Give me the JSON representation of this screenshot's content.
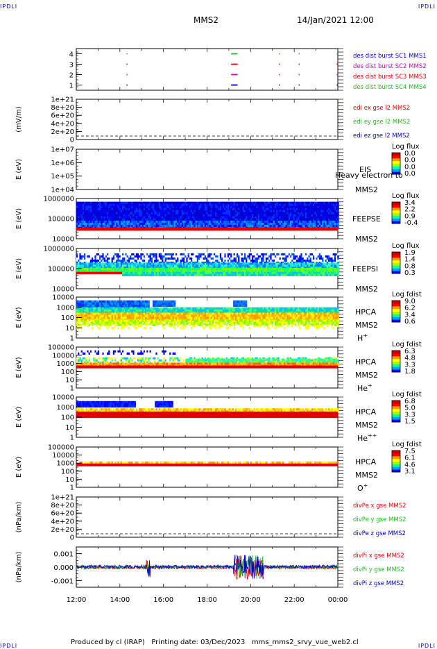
{
  "corner_labels": {
    "tl": "IPDLI",
    "tr": "IPDLI",
    "bl": "IPDLI",
    "br": "IPDLI"
  },
  "header": {
    "spacecraft": "MMS2",
    "datetime": "14/Jan/2021 12:00"
  },
  "footer": {
    "text": "Produced by cl (IRAP)   Printing date: 03/Dec/2023   mms_mms2_srvy_vue_web2.cl"
  },
  "time_axis": {
    "ticks": [
      "12:00",
      "14:00",
      "16:00",
      "18:00",
      "20:00",
      "22:00",
      "00:00"
    ]
  },
  "colors": {
    "red": "#ee0000",
    "green": "#22bb22",
    "blue": "#0000cc",
    "magenta": "#cc00cc",
    "colorbar": [
      "#0000ff",
      "#00a0ff",
      "#00ffb0",
      "#a0ff00",
      "#ffff00",
      "#ff9900",
      "#ff0000",
      "#cc0000"
    ]
  },
  "chart_data": [
    {
      "type": "scatter",
      "panel": "burst",
      "ylim": [
        0.5,
        4.5
      ],
      "yticks": [
        "1",
        "2",
        "3",
        "4"
      ],
      "legend": [
        {
          "text": "des dist burst SC1 MMS1",
          "color": "#0000cc"
        },
        {
          "text": "des dist burst SC2 MMS2",
          "color": "#cc00cc"
        },
        {
          "text": "des dist burst SC3 MMS3",
          "color": "#ee0000"
        },
        {
          "text": "des dist burst SC4 MMS4",
          "color": "#22bb22"
        }
      ],
      "series": [
        {
          "level": 4,
          "color": "#22bb22",
          "times": [
            14.3,
            19.1,
            19.15,
            21.3,
            22.2,
            23.95
          ]
        },
        {
          "level": 3,
          "color": "#ee0000",
          "times": [
            14.3,
            19.1,
            19.15,
            21.3,
            22.2,
            23.95
          ]
        },
        {
          "level": 2,
          "color": "#cc00cc",
          "times": [
            14.3,
            19.1,
            19.15,
            21.3,
            22.2,
            23.95
          ]
        },
        {
          "level": 1,
          "color": "#0000cc",
          "times": [
            14.3,
            19.1,
            19.15,
            21.3,
            22.2,
            23.95
          ]
        }
      ]
    },
    {
      "type": "line",
      "panel": "edi",
      "ylabel": "(mV/m)",
      "yticks": [
        "1e+21",
        "8e+20",
        "6e+20",
        "4e+20",
        "2e+20",
        "0"
      ],
      "legend": [
        {
          "text": "edi ex gse l2 MMS2",
          "color": "#ee0000"
        },
        {
          "text": "edi ey gse l2 MMS2",
          "color": "#22bb22"
        },
        {
          "text": "edi ez gse l2 MMS2",
          "color": "#0000cc"
        }
      ]
    },
    {
      "type": "heatmap",
      "panel": "eis",
      "ylabel": "E (eV)",
      "yticks": [
        "1e+07",
        "1e+06",
        "1e+05",
        "1e+04"
      ],
      "instrument": "EIS",
      "species": "Heavy electron to",
      "sc": "MMS2",
      "cb_title": "Log flux",
      "cb_ticks": [
        "0.0",
        "0.0",
        "0.0",
        "0.0"
      ]
    },
    {
      "type": "heatmap",
      "panel": "feepse",
      "ylabel": "E (eV)",
      "yticks": [
        "1000000",
        "100000",
        "10000"
      ],
      "instrument": "FEEPSE",
      "sc": "MMS2",
      "cb_title": "Log flux",
      "cb_ticks": [
        "3.4",
        "2.2",
        "0.9",
        "-0.4"
      ]
    },
    {
      "type": "heatmap",
      "panel": "feepsi",
      "ylabel": "E (eV)",
      "yticks": [
        "1000000",
        "100000",
        "10000"
      ],
      "instrument": "FEEPSI",
      "sc": "MMS2",
      "cb_title": "Log flux",
      "cb_ticks": [
        "1.9",
        "1.4",
        "0.8",
        "0.3"
      ]
    },
    {
      "type": "heatmap",
      "panel": "hpca_h",
      "ylabel": "E (eV)",
      "yticks": [
        "10000",
        "1000",
        "100",
        "10",
        "1"
      ],
      "instrument": "HPCA",
      "sc": "MMS2",
      "ion": "H",
      "ion_sup": "+",
      "cb_title": "Log fdist",
      "cb_ticks": [
        "9.0",
        "6.2",
        "3.4",
        "0.6"
      ]
    },
    {
      "type": "heatmap",
      "panel": "hpca_he1",
      "ylabel": "E (eV)",
      "yticks": [
        "100000",
        "10000",
        "1000",
        "100",
        "10",
        "1"
      ],
      "instrument": "HPCA",
      "sc": "MMS2",
      "ion": "He",
      "ion_sup": "+",
      "cb_title": "Log fdist",
      "cb_ticks": [
        "6.3",
        "4.8",
        "3.3",
        "1.8"
      ]
    },
    {
      "type": "heatmap",
      "panel": "hpca_he2",
      "ylabel": "E (eV)",
      "yticks": [
        "10000",
        "1000",
        "100",
        "10",
        "1"
      ],
      "instrument": "HPCA",
      "sc": "MMS2",
      "ion": "He",
      "ion_sup": "++",
      "cb_title": "Log fdist",
      "cb_ticks": [
        "6.8",
        "5.0",
        "3.3",
        "1.5"
      ]
    },
    {
      "type": "heatmap",
      "panel": "hpca_o",
      "ylabel": "E (eV)",
      "yticks": [
        "100000",
        "10000",
        "1000",
        "100",
        "10",
        "1"
      ],
      "instrument": "HPCA",
      "sc": "MMS2",
      "ion": "O",
      "ion_sup": "+",
      "cb_title": "Log fdist",
      "cb_ticks": [
        "7.5",
        "6.1",
        "4.6",
        "3.1"
      ]
    },
    {
      "type": "line",
      "panel": "divpe",
      "ylabel": "(nPa/km)",
      "yticks": [
        "1e+21",
        "8e+20",
        "6e+20",
        "4e+20",
        "2e+20",
        "0"
      ],
      "legend": [
        {
          "text": "divPe x gse MMS2",
          "color": "#ee0000"
        },
        {
          "text": "divPe y gse MMS2",
          "color": "#22bb22"
        },
        {
          "text": "divPe z gse MMS2",
          "color": "#0000cc"
        }
      ]
    },
    {
      "type": "line",
      "panel": "divpi",
      "ylabel": "(nPa/km)",
      "ylim": [
        -0.0015,
        0.0015
      ],
      "yticks": [
        "0.001",
        "0.000",
        "-0.001"
      ],
      "legend": [
        {
          "text": "divPi x gse MMS2",
          "color": "#ee0000"
        },
        {
          "text": "divPi y gse MMS2",
          "color": "#22bb22"
        },
        {
          "text": "divPi z gse MMS2",
          "color": "#0000cc"
        }
      ]
    }
  ]
}
